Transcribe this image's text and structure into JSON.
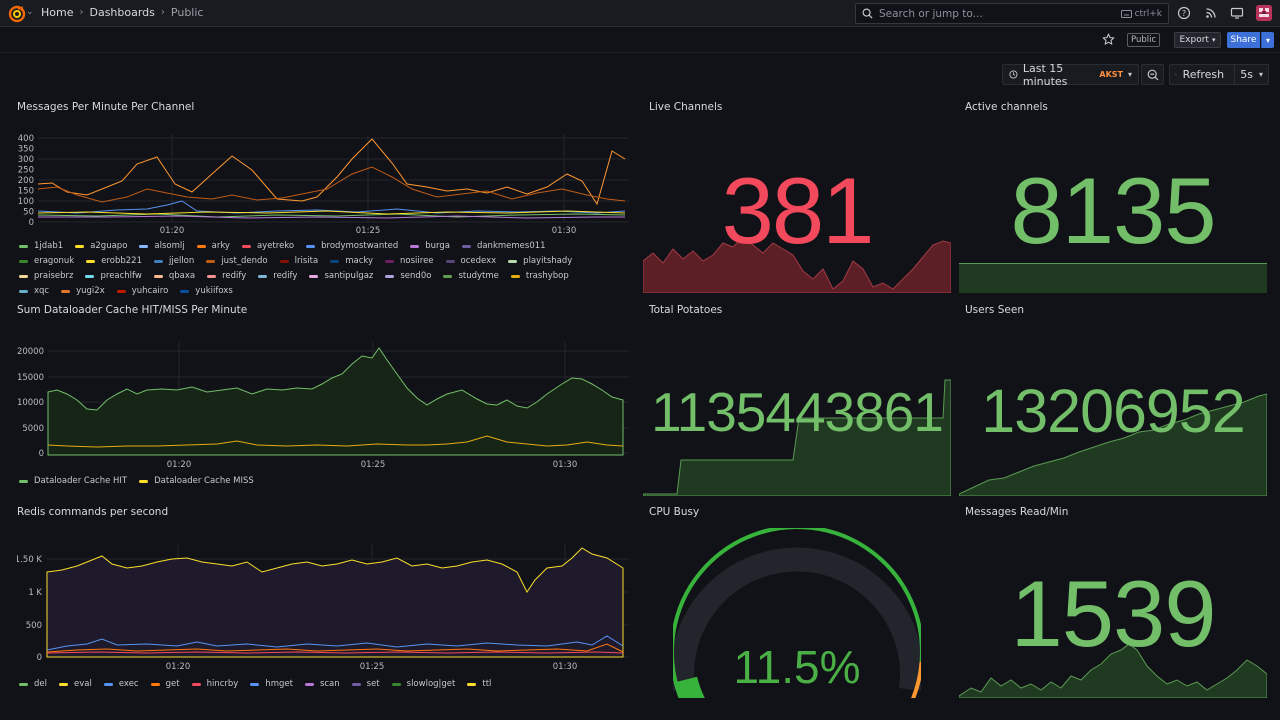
{
  "breadcrumb": {
    "home": "Home",
    "dashboards": "Dashboards",
    "current": "Public"
  },
  "search": {
    "placeholder": "Search or jump to...",
    "shortcut": "ctrl+k"
  },
  "toolbar": {
    "public_badge": "Public",
    "export": "Export",
    "share": "Share"
  },
  "time": {
    "range": "Last 15 minutes",
    "tz": "AKST",
    "refresh": "Refresh",
    "interval": "5s"
  },
  "colors": {
    "green": "#73bf69",
    "red": "#f2495c",
    "blue": "#3d71d9",
    "orange": "#ff9830"
  },
  "panels": {
    "messages": {
      "title": "Messages Per Minute Per Channel",
      "yticks": [
        "400",
        "350",
        "300",
        "250",
        "200",
        "150",
        "100",
        "50",
        "0"
      ],
      "xticks": [
        "01:20",
        "01:25",
        "01:30"
      ],
      "legend": [
        {
          "name": "1jdab1",
          "color": "#73bf69"
        },
        {
          "name": "a2guapo",
          "color": "#fade2a"
        },
        {
          "name": "alsomlj",
          "color": "#8ab8ff"
        },
        {
          "name": "arky",
          "color": "#ff780a"
        },
        {
          "name": "ayetreko",
          "color": "#f2495c"
        },
        {
          "name": "brodymostwanted",
          "color": "#5794f2"
        },
        {
          "name": "burga",
          "color": "#b877d9"
        },
        {
          "name": "dankmemes011",
          "color": "#705da0"
        },
        {
          "name": "eragonuk",
          "color": "#37872d"
        },
        {
          "name": "erobb221",
          "color": "#fade2a"
        },
        {
          "name": "jjellon",
          "color": "#447ebc"
        },
        {
          "name": "just_dendo",
          "color": "#c15c17"
        },
        {
          "name": "lrisita",
          "color": "#890f02"
        },
        {
          "name": "macky",
          "color": "#0a437c"
        },
        {
          "name": "nosiiree",
          "color": "#6d1f62"
        },
        {
          "name": "ocedexx",
          "color": "#584477"
        },
        {
          "name": "playitshady",
          "color": "#b7dbab"
        },
        {
          "name": "praisebrz",
          "color": "#f4d598"
        },
        {
          "name": "preachlfw",
          "color": "#70dbed"
        },
        {
          "name": "qbaxa",
          "color": "#f9ba8f"
        },
        {
          "name": "redify",
          "color": "#f29191"
        },
        {
          "name": "redify",
          "color": "#82b5d8"
        },
        {
          "name": "santipulgaz",
          "color": "#e5a8e2"
        },
        {
          "name": "send0o",
          "color": "#aea2e0"
        },
        {
          "name": "studytme",
          "color": "#629e51"
        },
        {
          "name": "trashybop",
          "color": "#e5ac0e"
        },
        {
          "name": "xqc",
          "color": "#64b0c8"
        },
        {
          "name": "yugi2x",
          "color": "#e0752d"
        },
        {
          "name": "yuhcairo",
          "color": "#bf1b00"
        },
        {
          "name": "yukiifoxs",
          "color": "#0a50a1"
        }
      ]
    },
    "live": {
      "title": "Live Channels",
      "value": "381"
    },
    "active": {
      "title": "Active channels",
      "value": "8135"
    },
    "cache": {
      "title": "Sum Dataloader Cache HIT/MISS Per Minute",
      "yticks": [
        "20000",
        "15000",
        "10000",
        "5000",
        "0"
      ],
      "xticks": [
        "01:20",
        "01:25",
        "01:30"
      ],
      "legend": [
        {
          "name": "Dataloader Cache HIT",
          "color": "#73bf69"
        },
        {
          "name": "Dataloader Cache MISS",
          "color": "#fade2a"
        }
      ]
    },
    "potatoes": {
      "title": "Total Potatoes",
      "value": "1135443861"
    },
    "users": {
      "title": "Users Seen",
      "value": "13206952"
    },
    "redis": {
      "title": "Redis commands per second",
      "yticks": [
        "1.50 K",
        "1 K",
        "500",
        "0"
      ],
      "xticks": [
        "01:20",
        "01:25",
        "01:30"
      ],
      "legend": [
        {
          "name": "del",
          "color": "#73bf69"
        },
        {
          "name": "eval",
          "color": "#fade2a"
        },
        {
          "name": "exec",
          "color": "#5794f2"
        },
        {
          "name": "get",
          "color": "#ff780a"
        },
        {
          "name": "hincrby",
          "color": "#f2495c"
        },
        {
          "name": "hmget",
          "color": "#5794f2"
        },
        {
          "name": "scan",
          "color": "#b877d9"
        },
        {
          "name": "set",
          "color": "#705da0"
        },
        {
          "name": "slowlog|get",
          "color": "#37872d"
        },
        {
          "name": "ttl",
          "color": "#fade2a"
        }
      ]
    },
    "cpu": {
      "title": "CPU Busy",
      "value": "11.5%",
      "percent": 11.5
    },
    "readmin": {
      "title": "Messages Read/Min",
      "value": "1539"
    }
  }
}
